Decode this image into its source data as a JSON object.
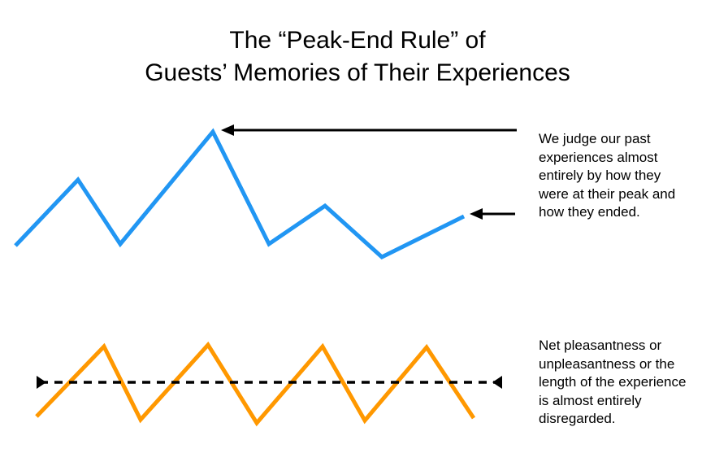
{
  "title": {
    "line1": "The “Peak-End Rule” of",
    "line2": "Guests’ Memories of Their Experiences"
  },
  "notes": {
    "peak_end": [
      "We judge our past",
      "experiences almost",
      "entirely by how they",
      "were at their peak and",
      "how they ended."
    ],
    "disregarded": [
      "Net pleasantness or",
      "unpleasantness or the",
      "length of the experience",
      "is almost entirely",
      "disregarded."
    ]
  },
  "colors": {
    "experience_line": "#2196F3",
    "zigzag_line": "#FF9800",
    "arrows": "#000000",
    "average_line": "#000000"
  }
}
